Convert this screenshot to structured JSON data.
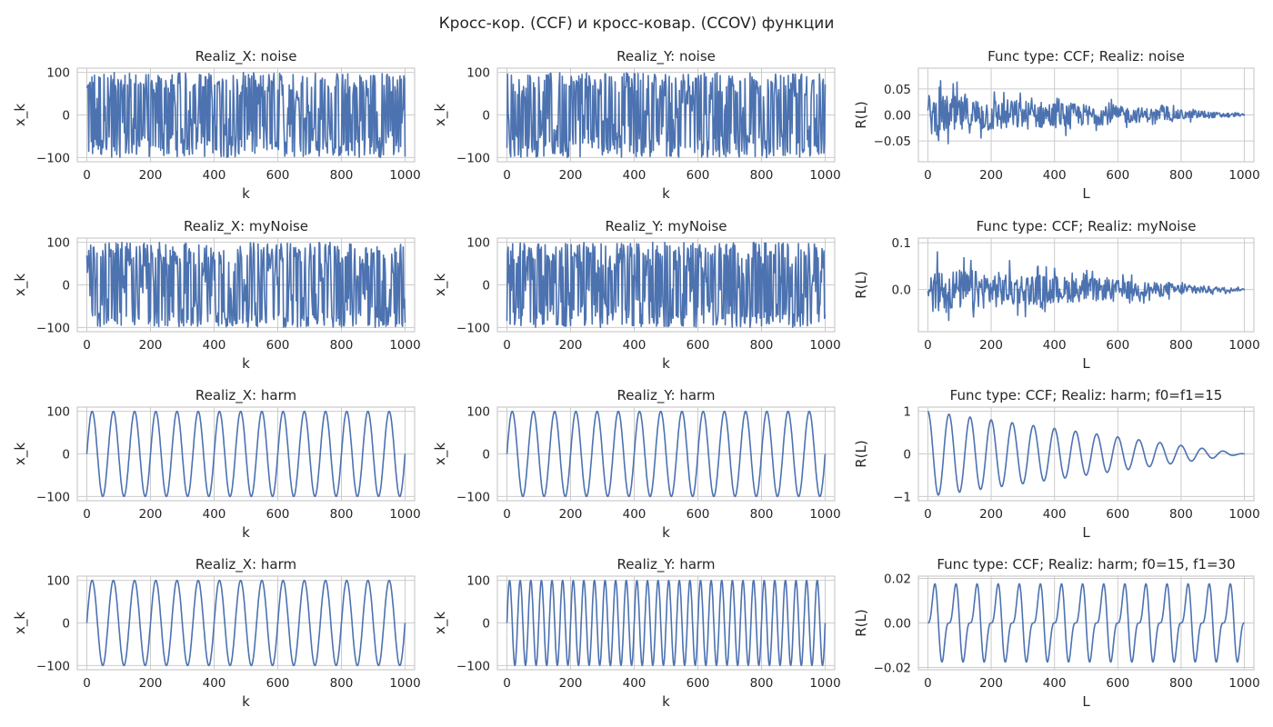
{
  "figure": {
    "suptitle": "Кросс-кор. (CCF) и кросс-ковар. (CCOV) функции",
    "line_color": "#4c72b0",
    "grid_color": "#cccccc"
  },
  "chart_data": [
    {
      "type": "line",
      "title": "Realiz_X: noise",
      "xlabel": "k",
      "ylabel": "x_k",
      "xlim": [
        -30,
        1030
      ],
      "ylim": [
        -110,
        110
      ],
      "xticks": [
        "0",
        "200",
        "400",
        "600",
        "800",
        "1000"
      ],
      "yticks": [
        "100",
        "0",
        "−100"
      ],
      "ytick_values": [
        100,
        0,
        -100
      ],
      "grid": true,
      "signal": "noise",
      "n": 1000,
      "amplitude": 100
    },
    {
      "type": "line",
      "title": "Realiz_Y: noise",
      "xlabel": "k",
      "ylabel": "x_k",
      "xlim": [
        -30,
        1030
      ],
      "ylim": [
        -110,
        110
      ],
      "xticks": [
        "0",
        "200",
        "400",
        "600",
        "800",
        "1000"
      ],
      "yticks": [
        "100",
        "0",
        "−100"
      ],
      "ytick_values": [
        100,
        0,
        -100
      ],
      "grid": true,
      "signal": "noise",
      "n": 1000,
      "amplitude": 100
    },
    {
      "type": "line",
      "title": "Func type: CCF; Realiz: noise",
      "xlabel": "L",
      "ylabel": "R(L)",
      "xlim": [
        -30,
        1030
      ],
      "ylim": [
        -0.09,
        0.09
      ],
      "xticks": [
        "0",
        "200",
        "400",
        "600",
        "800",
        "1000"
      ],
      "yticks": [
        "0.05",
        "0.00",
        "−0.05"
      ],
      "ytick_values": [
        0.05,
        0,
        -0.05
      ],
      "grid": true,
      "signal": "ccf-noise",
      "n": 1000,
      "amplitude": 0.05
    },
    {
      "type": "line",
      "title": "Realiz_X: myNoise",
      "xlabel": "k",
      "ylabel": "x_k",
      "xlim": [
        -30,
        1030
      ],
      "ylim": [
        -110,
        110
      ],
      "xticks": [
        "0",
        "200",
        "400",
        "600",
        "800",
        "1000"
      ],
      "yticks": [
        "100",
        "0",
        "−100"
      ],
      "ytick_values": [
        100,
        0,
        -100
      ],
      "grid": true,
      "signal": "noise",
      "n": 1000,
      "amplitude": 100
    },
    {
      "type": "line",
      "title": "Realiz_Y: myNoise",
      "xlabel": "k",
      "ylabel": "x_k",
      "xlim": [
        -30,
        1030
      ],
      "ylim": [
        -110,
        110
      ],
      "xticks": [
        "0",
        "200",
        "400",
        "600",
        "800",
        "1000"
      ],
      "yticks": [
        "100",
        "0",
        "−100"
      ],
      "ytick_values": [
        100,
        0,
        -100
      ],
      "grid": true,
      "signal": "noise",
      "n": 1000,
      "amplitude": 100
    },
    {
      "type": "line",
      "title": "Func type: CCF; Realiz: myNoise",
      "xlabel": "L",
      "ylabel": "R(L)",
      "xlim": [
        -30,
        1030
      ],
      "ylim": [
        -0.09,
        0.11
      ],
      "xticks": [
        "0",
        "200",
        "400",
        "600",
        "800",
        "1000"
      ],
      "yticks": [
        "0.1",
        "0.0"
      ],
      "ytick_values": [
        0.1,
        0
      ],
      "grid": true,
      "signal": "ccf-noise",
      "n": 1000,
      "amplitude": 0.06
    },
    {
      "type": "line",
      "title": "Realiz_X: harm",
      "xlabel": "k",
      "ylabel": "x_k",
      "xlim": [
        -30,
        1030
      ],
      "ylim": [
        -110,
        110
      ],
      "xticks": [
        "0",
        "200",
        "400",
        "600",
        "800",
        "1000"
      ],
      "yticks": [
        "100",
        "0",
        "−100"
      ],
      "ytick_values": [
        100,
        0,
        -100
      ],
      "grid": true,
      "signal": "harm",
      "n": 1000,
      "amplitude": 100,
      "frequency": 15
    },
    {
      "type": "line",
      "title": "Realiz_Y: harm",
      "xlabel": "k",
      "ylabel": "x_k",
      "xlim": [
        -30,
        1030
      ],
      "ylim": [
        -110,
        110
      ],
      "xticks": [
        "0",
        "200",
        "400",
        "600",
        "800",
        "1000"
      ],
      "yticks": [
        "100",
        "0",
        "−100"
      ],
      "ytick_values": [
        100,
        0,
        -100
      ],
      "grid": true,
      "signal": "harm",
      "n": 1000,
      "amplitude": 100,
      "frequency": 15
    },
    {
      "type": "line",
      "title": "Func type: CCF; Realiz: harm; f0=f1=15",
      "xlabel": "L",
      "ylabel": "R(L)",
      "xlim": [
        -30,
        1030
      ],
      "ylim": [
        -1.1,
        1.1
      ],
      "xticks": [
        "0",
        "200",
        "400",
        "600",
        "800",
        "1000"
      ],
      "yticks": [
        "1",
        "0",
        "−1"
      ],
      "ytick_values": [
        1,
        0,
        -1
      ],
      "grid": true,
      "signal": "ccf-harm-same",
      "n": 1000,
      "amplitude": 1,
      "frequency": 15
    },
    {
      "type": "line",
      "title": "Realiz_X: harm",
      "xlabel": "k",
      "ylabel": "x_k",
      "xlim": [
        -30,
        1030
      ],
      "ylim": [
        -110,
        110
      ],
      "xticks": [
        "0",
        "200",
        "400",
        "600",
        "800",
        "1000"
      ],
      "yticks": [
        "100",
        "0",
        "−100"
      ],
      "ytick_values": [
        100,
        0,
        -100
      ],
      "grid": true,
      "signal": "harm",
      "n": 1000,
      "amplitude": 100,
      "frequency": 15
    },
    {
      "type": "line",
      "title": "Realiz_Y: harm",
      "xlabel": "k",
      "ylabel": "x_k",
      "xlim": [
        -30,
        1030
      ],
      "ylim": [
        -110,
        110
      ],
      "xticks": [
        "0",
        "200",
        "400",
        "600",
        "800",
        "1000"
      ],
      "yticks": [
        "100",
        "0",
        "−100"
      ],
      "ytick_values": [
        100,
        0,
        -100
      ],
      "grid": true,
      "signal": "harm",
      "n": 1000,
      "amplitude": 100,
      "frequency": 30
    },
    {
      "type": "line",
      "title": "Func type: CCF; Realiz: harm; f0=15, f1=30",
      "xlabel": "L",
      "ylabel": "R(L)",
      "xlim": [
        -30,
        1030
      ],
      "ylim": [
        -0.021,
        0.021
      ],
      "xticks": [
        "0",
        "200",
        "400",
        "600",
        "800",
        "1000"
      ],
      "yticks": [
        "0.02",
        "0.00",
        "−0.02"
      ],
      "ytick_values": [
        0.02,
        0,
        -0.02
      ],
      "grid": true,
      "signal": "ccf-harm-diff",
      "n": 1000,
      "amplitude": 0.018,
      "frequency": 15
    }
  ]
}
